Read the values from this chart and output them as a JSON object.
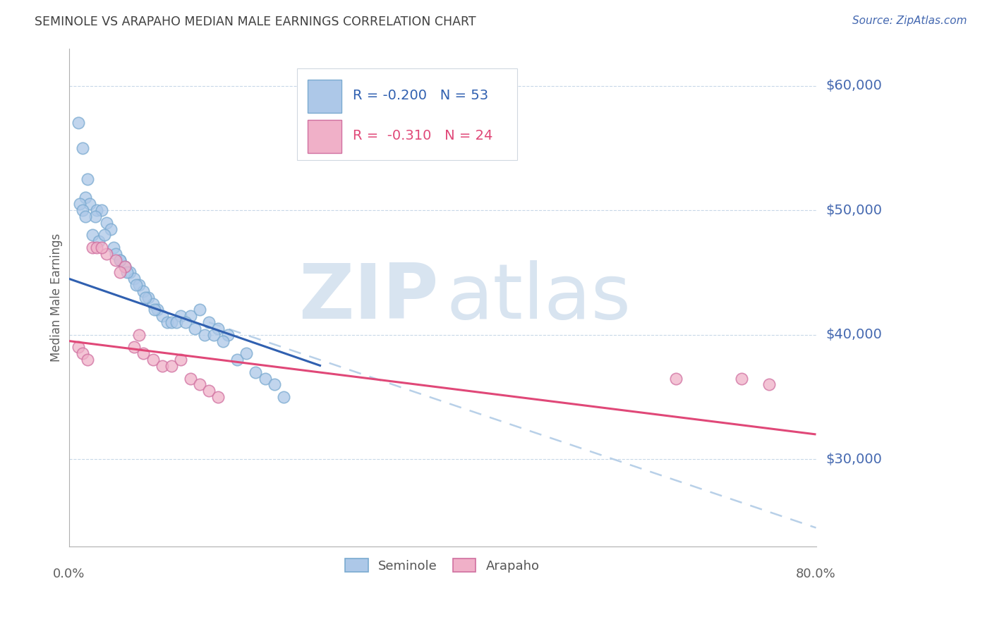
{
  "title": "SEMINOLE VS ARAPAHO MEDIAN MALE EARNINGS CORRELATION CHART",
  "source": "Source: ZipAtlas.com",
  "ylabel": "Median Male Earnings",
  "y_ticks": [
    30000,
    40000,
    50000,
    60000
  ],
  "y_tick_labels": [
    "$30,000",
    "$40,000",
    "$50,000",
    "$60,000"
  ],
  "seminole_R": "-0.200",
  "seminole_N": "53",
  "arapaho_R": "-0.310",
  "arapaho_N": "24",
  "seminole_color": "#adc8e8",
  "seminole_edge_color": "#7aaad0",
  "seminole_line_color": "#3060b0",
  "arapaho_color": "#f0b0c8",
  "arapaho_edge_color": "#d070a0",
  "arapaho_line_color": "#e04878",
  "dashed_line_color": "#b8d0e8",
  "watermark_zip_color": "#d8e4f0",
  "watermark_atlas_color": "#d8e4f0",
  "title_color": "#404040",
  "source_color": "#4468b0",
  "axis_label_color": "#606060",
  "tick_label_color": "#4468b0",
  "grid_color": "#c8d8e8",
  "background_color": "#ffffff",
  "legend_edge_color": "#d0d8e0",
  "xmin": 0,
  "xmax": 80,
  "ymin": 23000,
  "ymax": 63000,
  "seminole_trend_x0": 0,
  "seminole_trend_x1": 27,
  "seminole_trend_y0": 44500,
  "seminole_trend_y1": 37500,
  "arapaho_trend_x0": 0,
  "arapaho_trend_x1": 80,
  "arapaho_trend_y0": 39500,
  "arapaho_trend_y1": 32000,
  "dashed_trend_x0": 15,
  "dashed_trend_x1": 80,
  "dashed_trend_y0": 41000,
  "dashed_trend_y1": 24500,
  "seminole_scatter_x": [
    1.0,
    1.5,
    2.0,
    1.8,
    2.2,
    3.0,
    3.5,
    2.8,
    4.0,
    4.5,
    1.2,
    1.5,
    1.8,
    2.5,
    3.2,
    4.8,
    5.5,
    6.0,
    6.5,
    7.0,
    7.5,
    8.0,
    8.5,
    9.0,
    9.5,
    10.0,
    10.5,
    11.0,
    12.0,
    13.0,
    14.0,
    15.0,
    16.0,
    17.0,
    18.0,
    19.0,
    20.0,
    21.0,
    22.0,
    23.0,
    14.5,
    15.5,
    16.5,
    5.0,
    5.5,
    6.2,
    7.2,
    8.2,
    9.2,
    3.8,
    11.5,
    12.5,
    13.5
  ],
  "seminole_scatter_y": [
    57000,
    55000,
    52500,
    51000,
    50500,
    50000,
    50000,
    49500,
    49000,
    48500,
    50500,
    50000,
    49500,
    48000,
    47500,
    47000,
    46000,
    45500,
    45000,
    44500,
    44000,
    43500,
    43000,
    42500,
    42000,
    41500,
    41000,
    41000,
    41500,
    41500,
    42000,
    41000,
    40500,
    40000,
    38000,
    38500,
    37000,
    36500,
    36000,
    35000,
    40000,
    40000,
    39500,
    46500,
    46000,
    45000,
    44000,
    43000,
    42000,
    48000,
    41000,
    41000,
    40500
  ],
  "arapaho_scatter_x": [
    1.0,
    1.5,
    2.0,
    2.5,
    3.0,
    4.0,
    5.0,
    6.0,
    7.0,
    8.0,
    9.0,
    10.0,
    11.0,
    12.0,
    13.0,
    14.0,
    15.0,
    16.0,
    3.5,
    5.5,
    7.5,
    65.0,
    72.0,
    75.0
  ],
  "arapaho_scatter_y": [
    39000,
    38500,
    38000,
    47000,
    47000,
    46500,
    46000,
    45500,
    39000,
    38500,
    38000,
    37500,
    37500,
    38000,
    36500,
    36000,
    35500,
    35000,
    47000,
    45000,
    40000,
    36500,
    36500,
    36000
  ],
  "scatter_size": 140,
  "scatter_alpha": 0.75,
  "marker_lw": 1.2
}
